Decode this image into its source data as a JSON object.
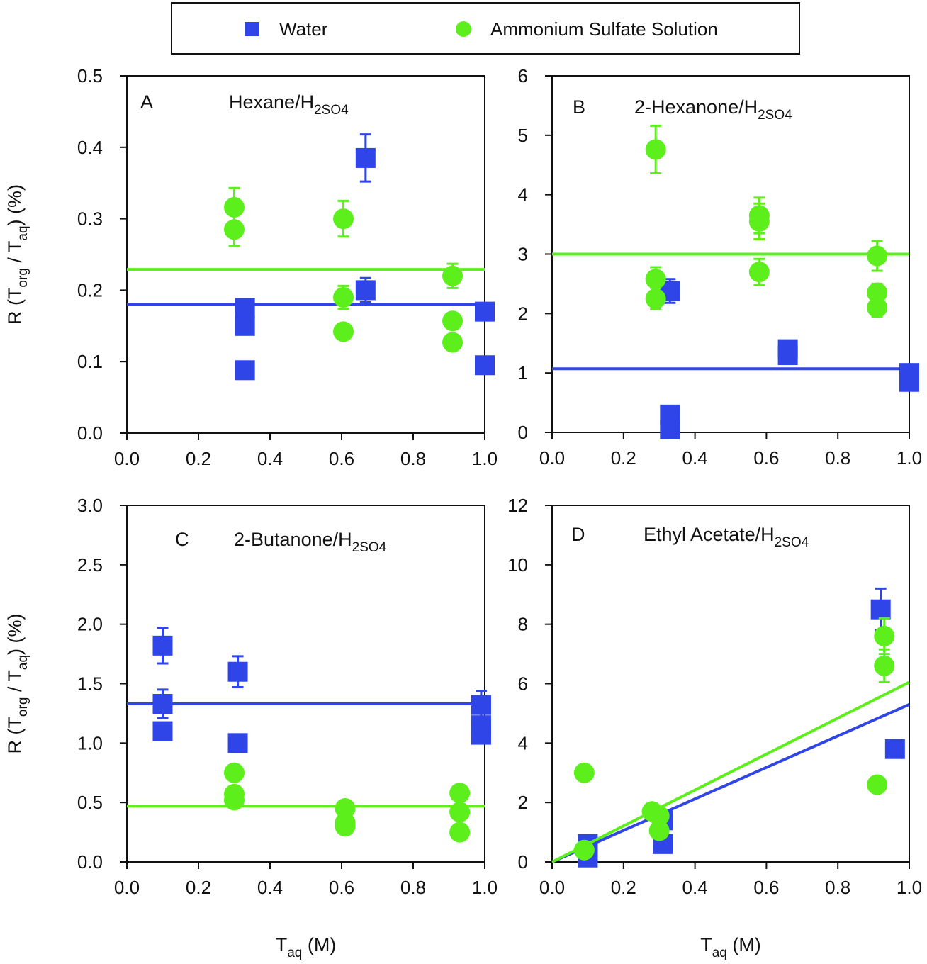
{
  "legend": {
    "position": "top-center",
    "entries": [
      {
        "name": "Water",
        "marker": "square",
        "color": "#2f45e8"
      },
      {
        "name": "Ammonium Sulfate Solution",
        "marker": "circle",
        "color": "#5cef1c"
      }
    ]
  },
  "chart_data": [
    {
      "type": "scatter",
      "panel_label": "A",
      "title": "Hexane/H_2SO_4",
      "xlabel": "",
      "ylabel": "R (T_org / T_aq) (%)",
      "xlim": [
        0,
        1.0
      ],
      "ylim": [
        0,
        0.5
      ],
      "xticks": [
        "0.0",
        "0.2",
        "0.4",
        "0.6",
        "0.8",
        "1.0"
      ],
      "yticks": [
        "0.0",
        "0.1",
        "0.2",
        "0.3",
        "0.4",
        "0.5"
      ],
      "series": [
        {
          "name": "Water",
          "points": [
            [
              0.33,
              0.175,
              0.005
            ],
            [
              0.33,
              0.15,
              0
            ],
            [
              0.33,
              0.088,
              0
            ],
            [
              0.667,
              0.385,
              0.033
            ],
            [
              0.667,
              0.2,
              0.017
            ],
            [
              1.0,
              0.17,
              0.005
            ],
            [
              1.0,
              0.095,
              0
            ]
          ],
          "fit": {
            "slope": 0,
            "intercept": 0.18
          }
        },
        {
          "name": "Ammonium Sulfate Solution",
          "points": [
            [
              0.3,
              0.316,
              0.027
            ],
            [
              0.3,
              0.285,
              0.023
            ],
            [
              0.605,
              0.3,
              0.025
            ],
            [
              0.605,
              0.19,
              0.016
            ],
            [
              0.605,
              0.142,
              0
            ],
            [
              0.91,
              0.22,
              0.017
            ],
            [
              0.91,
              0.157,
              0
            ],
            [
              0.91,
              0.127,
              0
            ]
          ],
          "fit": {
            "slope": 0,
            "intercept": 0.229
          }
        }
      ]
    },
    {
      "type": "scatter",
      "panel_label": "B",
      "title": "2-Hexanone/H_2SO_4",
      "xlabel": "",
      "ylabel": "",
      "xlim": [
        0,
        1.0
      ],
      "ylim": [
        0,
        6
      ],
      "xticks": [
        "0.0",
        "0.2",
        "0.4",
        "0.6",
        "0.8",
        "1.0"
      ],
      "yticks": [
        "0",
        "1",
        "2",
        "3",
        "4",
        "5",
        "6"
      ],
      "series": [
        {
          "name": "Water",
          "points": [
            [
              0.33,
              2.38,
              0.2
            ],
            [
              0.33,
              0.3,
              0
            ],
            [
              0.33,
              0.05,
              0
            ],
            [
              0.66,
              1.4,
              0
            ],
            [
              0.66,
              1.3,
              0
            ],
            [
              1.0,
              1.0,
              0
            ],
            [
              1.0,
              0.85,
              0
            ]
          ],
          "fit": {
            "slope": 0,
            "intercept": 1.07
          }
        },
        {
          "name": "Ammonium Sulfate Solution",
          "points": [
            [
              0.29,
              4.76,
              0.4
            ],
            [
              0.29,
              2.58,
              0.2
            ],
            [
              0.29,
              2.25,
              0.18
            ],
            [
              0.58,
              3.65,
              0.3
            ],
            [
              0.58,
              3.55,
              0.3
            ],
            [
              0.58,
              2.7,
              0.22
            ],
            [
              0.91,
              2.97,
              0.25
            ],
            [
              0.91,
              2.35,
              0.15
            ],
            [
              0.91,
              2.1,
              0.15
            ]
          ],
          "fit": {
            "slope": 0,
            "intercept": 3.0
          }
        }
      ]
    },
    {
      "type": "scatter",
      "panel_label": "C",
      "title": "2-Butanone/H_2SO_4",
      "xlabel": "T_aq (M)",
      "ylabel": "R (T_org / T_aq) (%)",
      "xlim": [
        0,
        1.0
      ],
      "ylim": [
        0,
        3.0
      ],
      "xticks": [
        "0.0",
        "0.2",
        "0.4",
        "0.6",
        "0.8",
        "1.0"
      ],
      "yticks": [
        "0.0",
        "0.5",
        "1.0",
        "1.5",
        "2.0",
        "2.5",
        "3.0"
      ],
      "series": [
        {
          "name": "Water",
          "points": [
            [
              0.1,
              1.82,
              0.15
            ],
            [
              0.1,
              1.33,
              0.12
            ],
            [
              0.1,
              1.1,
              0.03
            ],
            [
              0.31,
              1.6,
              0.13
            ],
            [
              0.31,
              1.0,
              0
            ],
            [
              0.99,
              1.32,
              0.12
            ],
            [
              0.99,
              1.15,
              0
            ],
            [
              0.99,
              1.07,
              0
            ]
          ],
          "fit": {
            "slope": 0,
            "intercept": 1.33
          }
        },
        {
          "name": "Ammonium Sulfate Solution",
          "points": [
            [
              0.3,
              0.75,
              0
            ],
            [
              0.3,
              0.57,
              0
            ],
            [
              0.3,
              0.52,
              0
            ],
            [
              0.61,
              0.45,
              0
            ],
            [
              0.61,
              0.33,
              0
            ],
            [
              0.61,
              0.3,
              0
            ],
            [
              0.93,
              0.58,
              0
            ],
            [
              0.93,
              0.42,
              0
            ],
            [
              0.93,
              0.25,
              0
            ]
          ],
          "fit": {
            "slope": 0,
            "intercept": 0.47
          }
        }
      ]
    },
    {
      "type": "scatter",
      "panel_label": "D",
      "title": "Ethyl Acetate/H_2SO_4",
      "xlabel": "T_aq (M)",
      "ylabel": "",
      "xlim": [
        0,
        1.0
      ],
      "ylim": [
        0,
        12
      ],
      "xticks": [
        "0.0",
        "0.2",
        "0.4",
        "0.6",
        "0.8",
        "1.0"
      ],
      "yticks": [
        "0",
        "2",
        "4",
        "6",
        "8",
        "10",
        "12"
      ],
      "series": [
        {
          "name": "Water",
          "points": [
            [
              0.1,
              0.6,
              0
            ],
            [
              0.1,
              0.3,
              0
            ],
            [
              0.1,
              0.15,
              0
            ],
            [
              0.31,
              1.4,
              0
            ],
            [
              0.31,
              0.6,
              0
            ],
            [
              0.92,
              8.5,
              0.7
            ],
            [
              0.96,
              3.8,
              0
            ]
          ],
          "fit": {
            "slope": 5.3,
            "intercept": 0
          }
        },
        {
          "name": "Ammonium Sulfate Solution",
          "points": [
            [
              0.09,
              3.0,
              0
            ],
            [
              0.09,
              0.4,
              0
            ],
            [
              0.28,
              1.7,
              0
            ],
            [
              0.3,
              1.55,
              0
            ],
            [
              0.3,
              1.05,
              0
            ],
            [
              0.93,
              7.6,
              0.6
            ],
            [
              0.93,
              6.6,
              0.55
            ],
            [
              0.91,
              2.6,
              0
            ]
          ],
          "fit": {
            "slope": 6.05,
            "intercept": 0
          }
        }
      ]
    }
  ]
}
